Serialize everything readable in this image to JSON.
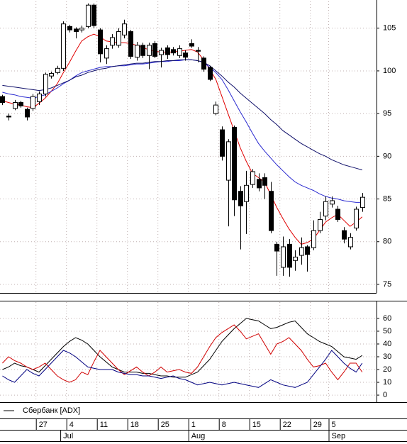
{
  "chart_data": [
    {
      "type": "candlestick",
      "categories": [
        null,
        null,
        null,
        null,
        null,
        null,
        "27",
        null,
        null,
        null,
        null,
        "4",
        null,
        null,
        null,
        null,
        "11",
        null,
        null,
        null,
        null,
        "18",
        null,
        null,
        null,
        null,
        "25",
        null,
        null,
        null,
        null,
        "1",
        null,
        null,
        null,
        null,
        "8",
        null,
        null,
        null,
        null,
        "15",
        null,
        null,
        null,
        null,
        "22",
        null,
        null,
        null,
        null,
        "29",
        null,
        null,
        "5",
        null,
        null,
        null,
        null,
        null
      ],
      "month_categories": [
        null,
        null,
        null,
        null,
        null,
        null,
        null,
        null,
        null,
        null,
        "Jul",
        null,
        null,
        null,
        null,
        null,
        null,
        null,
        null,
        null,
        null,
        null,
        null,
        null,
        null,
        null,
        null,
        null,
        null,
        null,
        null,
        "Aug",
        null,
        null,
        null,
        null,
        null,
        null,
        null,
        null,
        null,
        null,
        null,
        null,
        null,
        null,
        null,
        null,
        null,
        null,
        null,
        null,
        null,
        null,
        "Sep",
        null,
        null,
        null,
        null,
        null
      ],
      "ohlc": {
        "open": [
          97,
          94.7,
          95.6,
          96.3,
          95.5,
          95.6,
          96.4,
          97.3,
          99.4,
          99.8,
          100.3,
          105.2,
          104.9,
          104.8,
          105.2,
          107.7,
          104.8,
          101.5,
          103,
          103,
          104.2,
          104.6,
          101.6,
          103,
          101.8,
          103.2,
          101.9,
          102.7,
          102.5,
          101.8,
          102.1,
          103.2,
          102.4,
          101.5,
          100.4,
          95,
          93.1,
          87.2,
          93.4,
          85.9,
          84.7,
          86.7,
          87.3,
          87.5,
          85.9,
          79.7,
          77,
          79.7,
          77.8,
          78.4,
          79.4,
          79.3,
          81.3,
          83,
          84.4,
          83.8,
          81.3,
          79.4,
          81.6,
          84
        ],
        "high": [
          97.2,
          95,
          96.6,
          96.5,
          95.7,
          97.3,
          97.6,
          99.8,
          99.9,
          100.6,
          105.8,
          105.4,
          105.1,
          105.3,
          107.9,
          107.9,
          105,
          103,
          104.3,
          105,
          106,
          104.8,
          103.4,
          103.3,
          103.3,
          103.5,
          102.7,
          103,
          102.8,
          103,
          102.4,
          103.7,
          102.8,
          101.7,
          100.6,
          96.4,
          93.5,
          92,
          93.6,
          86.5,
          88.3,
          88.5,
          88,
          88,
          87,
          80,
          80.6,
          80.3,
          79,
          80.5,
          79.6,
          82.5,
          83.5,
          85.3,
          85.3,
          84.2,
          81.7,
          81,
          84.1,
          85.7
        ],
        "low": [
          96,
          94.2,
          95.4,
          95.7,
          94.2,
          95.3,
          96,
          97,
          99.1,
          99.6,
          100,
          104.5,
          103.8,
          104.5,
          105,
          105,
          101,
          100.8,
          102.6,
          102.7,
          103.8,
          101.4,
          101.2,
          101.5,
          100.2,
          101.5,
          100.4,
          101.4,
          101.8,
          101.5,
          101.2,
          102.7,
          101,
          99.9,
          98.8,
          94.8,
          89.5,
          81.8,
          83,
          79.1,
          80.9,
          86.3,
          85.9,
          85,
          81,
          76,
          76,
          75.9,
          76.6,
          77.3,
          76.5,
          79,
          81,
          82.5,
          84,
          82.3,
          79.8,
          79.1,
          81.3,
          83.5
        ],
        "close": [
          96.3,
          94.6,
          96.3,
          95.9,
          94.6,
          97,
          97.3,
          99.6,
          99.7,
          100.3,
          105.5,
          104.8,
          104.6,
          105,
          107.7,
          105.3,
          102,
          102.6,
          103.9,
          104.6,
          105.5,
          101.7,
          103,
          101.8,
          103,
          101.7,
          102.4,
          101.9,
          102.1,
          102.6,
          101.6,
          102.9,
          102.3,
          100.2,
          99,
          96,
          90,
          91.7,
          84.9,
          84.2,
          86.6,
          88.2,
          86.3,
          86.6,
          81.3,
          78.9,
          79.4,
          77,
          78.2,
          79.3,
          78.5,
          81.3,
          82.6,
          84.7,
          84.8,
          82.6,
          80.3,
          80.5,
          83.8,
          85.2
        ]
      },
      "up_color": "#ffffff",
      "down_color": "#000000",
      "series": [
        {
          "color": "#e00000",
          "values": [
            96.5,
            96.3,
            96.1,
            96,
            95.8,
            95.7,
            96.2,
            96.8,
            97.6,
            98.5,
            99.8,
            101,
            102.3,
            103.5,
            104,
            104.3,
            104,
            103.5,
            103.4,
            103.3,
            103.3,
            103.2,
            103,
            102.7,
            102.5,
            102.3,
            102.2,
            102.2,
            102.2,
            102.3,
            102.4,
            102.5,
            102.2,
            101.3,
            100.2,
            99,
            97,
            95,
            93,
            91,
            89.4,
            88,
            87.5,
            87,
            85.5,
            84,
            82.7,
            81.5,
            80.5,
            79.7,
            79.9,
            80.3,
            81.3,
            82.3,
            82.8,
            83.2,
            82.5,
            81.8,
            82.3,
            82.9
          ]
        },
        {
          "color": "#2a2ad0",
          "values": [
            97.5,
            97.3,
            97.2,
            97,
            96.9,
            96.8,
            97,
            97.2,
            97.6,
            98,
            98.5,
            98.9,
            99.4,
            99.8,
            100,
            100.2,
            100.4,
            100.5,
            100.5,
            100.6,
            100.6,
            100.7,
            100.8,
            100.8,
            100.9,
            101,
            101.1,
            101.1,
            101.2,
            101.2,
            101.3,
            101.3,
            101.2,
            101,
            100.4,
            99.8,
            99,
            97.8,
            96.5,
            95.2,
            94,
            92.7,
            91.5,
            90.6,
            89.8,
            89,
            88.3,
            87.6,
            87,
            86.6,
            86.3,
            86,
            85.6,
            85.3,
            85.1,
            85,
            84.8,
            84.7,
            84.6,
            84.6
          ]
        },
        {
          "color": "#10106a",
          "values": [
            98.3,
            98.2,
            98.1,
            98,
            97.9,
            97.8,
            97.7,
            97.8,
            98,
            98.3,
            98.6,
            98.9,
            99.3,
            99.5,
            99.8,
            100,
            100.2,
            100.3,
            100.5,
            100.6,
            100.7,
            100.8,
            100.9,
            100.9,
            101,
            101.1,
            101.1,
            101.2,
            101.2,
            101.3,
            101.3,
            101.3,
            101.2,
            101,
            100.6,
            100,
            99.4,
            98.7,
            98.1,
            97.4,
            96.8,
            96.2,
            95.6,
            95,
            94.3,
            93.7,
            93,
            92.5,
            92,
            91.5,
            91.1,
            90.7,
            90.3,
            90,
            89.6,
            89.3,
            89,
            88.8,
            88.6,
            88.4
          ]
        }
      ],
      "ylim": [
        74,
        108.3
      ],
      "yticks": [
        75,
        80,
        85,
        90,
        95,
        100,
        105
      ],
      "grid": true
    },
    {
      "type": "line",
      "legend_label": "Сбербанк [ADX]",
      "series": [
        {
          "color": "#000000",
          "values": [
            20,
            22,
            25,
            23,
            22,
            20,
            18,
            23,
            28,
            33,
            38,
            42,
            45,
            43,
            40,
            35,
            30,
            26,
            22,
            20,
            18,
            18,
            18,
            17,
            17,
            16,
            15,
            15,
            14,
            14,
            14,
            16,
            18,
            23,
            28,
            35,
            42,
            47,
            52,
            56,
            60,
            59,
            58,
            55,
            52,
            53,
            55,
            57,
            58,
            53,
            48,
            45,
            42,
            40,
            38,
            34,
            30,
            29,
            28,
            31
          ]
        },
        {
          "color": "#d00000",
          "values": [
            25,
            30,
            27,
            25,
            22,
            20,
            22,
            25,
            20,
            15,
            12,
            10,
            12,
            18,
            16,
            26,
            35,
            30,
            25,
            20,
            16,
            19,
            22,
            18,
            15,
            18,
            22,
            18,
            19,
            20,
            18,
            17,
            22,
            30,
            38,
            45,
            49,
            52,
            55,
            50,
            44,
            46,
            48,
            40,
            32,
            40,
            42,
            45,
            40,
            35,
            28,
            22,
            23,
            25,
            18,
            12,
            18,
            25,
            25,
            18
          ]
        },
        {
          "color": "#000080",
          "values": [
            15,
            12,
            10,
            15,
            20,
            17,
            15,
            20,
            25,
            30,
            35,
            33,
            30,
            26,
            22,
            21,
            20,
            20,
            20,
            18,
            17,
            16,
            16,
            15,
            15,
            14,
            13,
            14,
            15,
            13,
            12,
            10,
            8,
            9,
            10,
            9,
            8,
            9,
            10,
            9,
            8,
            7,
            6,
            9,
            12,
            10,
            8,
            7,
            6,
            8,
            10,
            16,
            22,
            28,
            35,
            30,
            25,
            21,
            18,
            25
          ]
        }
      ],
      "ylim": [
        -4.4,
        69.4
      ],
      "yticks": [
        0,
        10,
        20,
        30,
        40,
        50,
        60
      ],
      "grid": true
    }
  ]
}
